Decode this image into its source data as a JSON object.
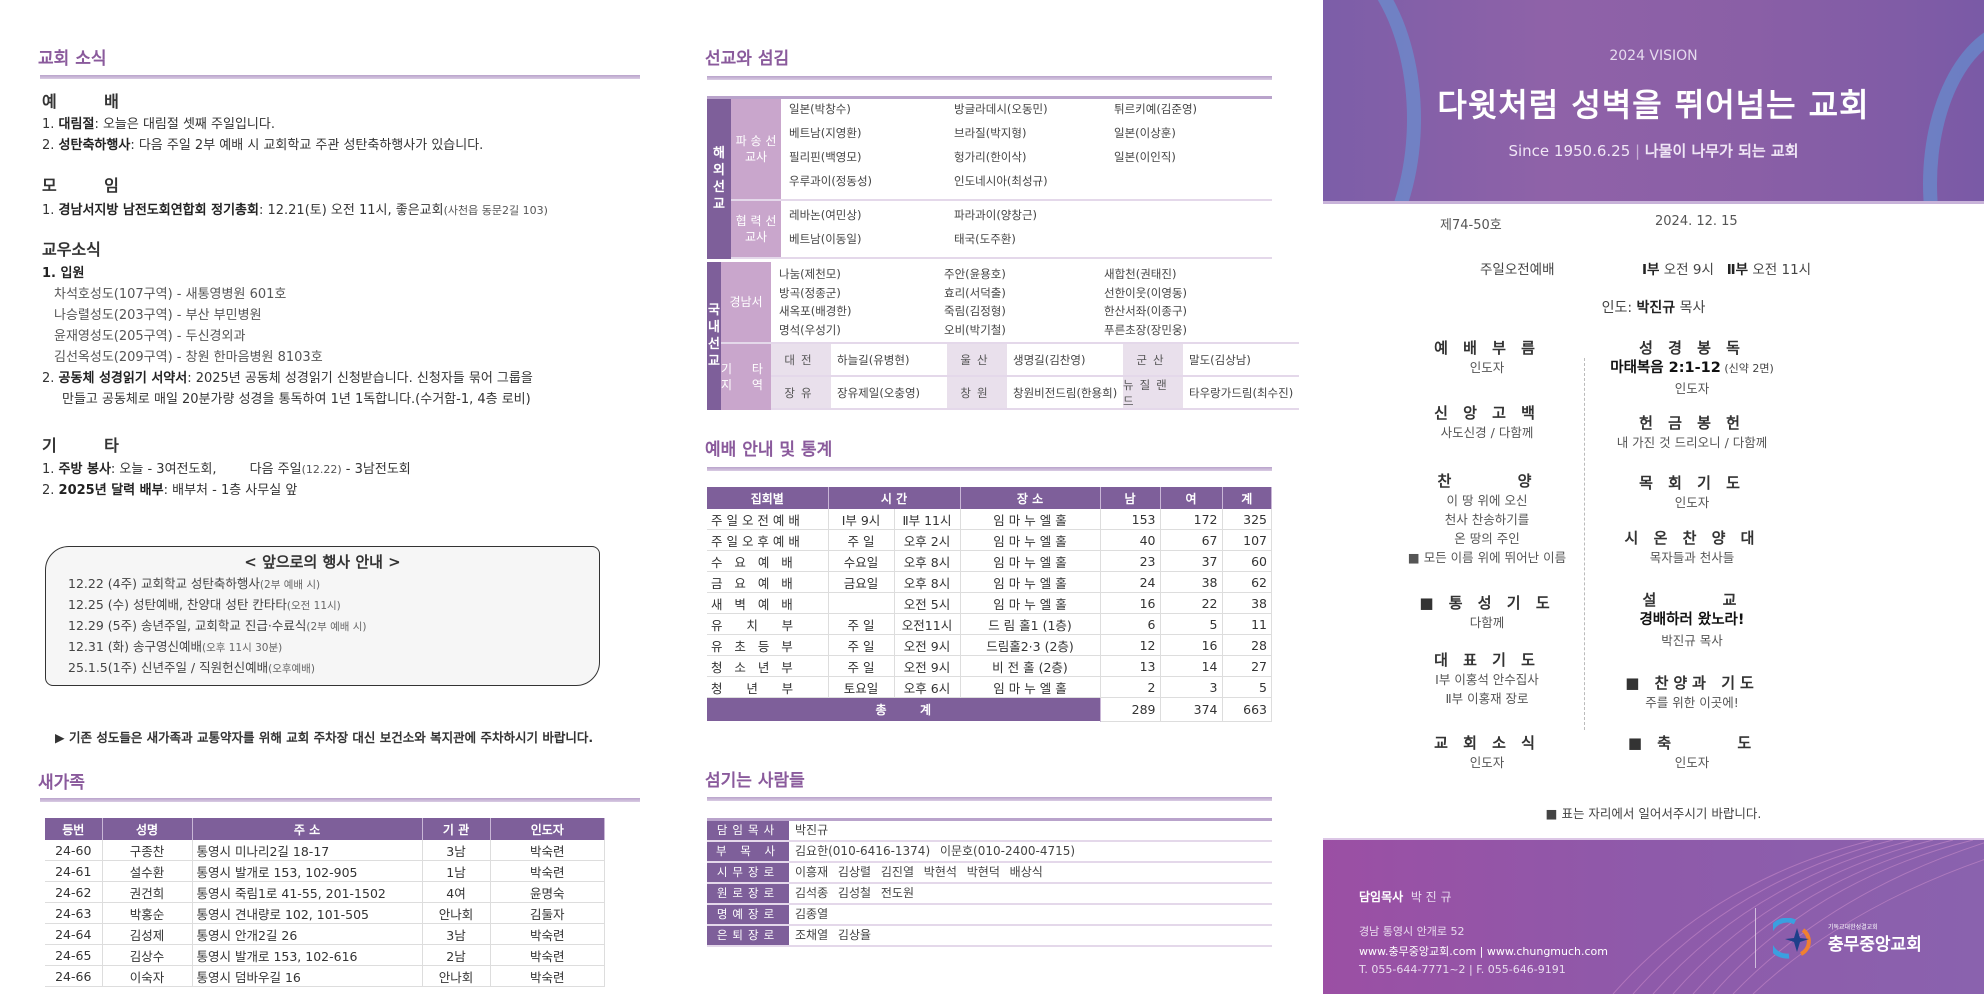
{
  "left": {
    "news_title": "교회 소식",
    "worship": {
      "heading": "예      배",
      "items": [
        {
          "num": "1.",
          "label": "대림절",
          "text": ": 오늘은 대림절 셋째 주일입니다."
        },
        {
          "num": "2.",
          "label": "성탄축하행사",
          "text": ": 다음 주일 2부 예배 시 교회학교 주관 성탄축하행사가 있습니다."
        }
      ]
    },
    "meeting": {
      "heading": "모      임",
      "items": [
        {
          "num": "1.",
          "label": "경남서지방 남전도회연합회 정기총회",
          "text": ": 12.21(토) 오전 11시, 좋은교회",
          "note": "(사천읍 동문2길 103)"
        }
      ]
    },
    "members": {
      "heading": "교우소식",
      "hospital_label": "1. 입원",
      "hospital": [
        "차석호성도(107구역) - 새통영병원 601호",
        "나승렬성도(203구역) - 부산 부민병원",
        "윤재영성도(205구역) - 두신경외과",
        "김선옥성도(209구역) - 창원 한마음병원 8103호"
      ],
      "bible": {
        "num": "2.",
        "label": "공동체 성경읽기 서약서",
        "text": ": 2025년 공동체 성경읽기 신청받습니다. 신청자들 묶어 그룹을",
        "text2": "만들고 공동체로 매일 20분가량 성경을 통독하여 1년 1독합니다.(수거함-1, 4층 로비)"
      }
    },
    "etc": {
      "heading": "기      타",
      "items": [
        {
          "num": "1.",
          "label": "주방 봉사",
          "text": ": 오늘 - 3여전도회,        다음 주일",
          "note": "(12.22)",
          "text2": " - 3남전도회"
        },
        {
          "num": "2.",
          "label": "2025년 달력 배부",
          "text": ": 배부처 - 1층 사무실 앞"
        }
      ]
    },
    "events": {
      "title": "< 앞으로의 행사 안내 >",
      "items": [
        {
          "text": "12.22 (4주) 교회학교 성탄축하행사",
          "note": "(2부 예배 시)"
        },
        {
          "text": "12.25 (수) 성탄예배, 찬양대 성탄 칸타타",
          "note": "(오전 11시)"
        },
        {
          "text": "12.29 (5주) 송년주일, 교회학교 진급·수료식",
          "note": "(2부 예배 시)"
        },
        {
          "text": "12.31 (화) 송구영신예배",
          "note": "(오후 11시 30분)"
        },
        {
          "text": "25.1.5(1주) 신년주일 / 직원헌신예배",
          "note": "(오후예배)"
        }
      ]
    },
    "parking_note": "▶ 기존 성도들은 새가족과 교통약자를 위해 교회 주차장 대신 보건소와 복지관에 주차하시기 바랍니다.",
    "newfamily_title": "새가족",
    "newfamily": {
      "headers": [
        "등번",
        "성명",
        "주 소",
        "기 관",
        "인도자"
      ],
      "rows": [
        [
          "24-60",
          "구종찬",
          "통영시 미나리2길 18-17",
          "3남",
          "박숙련"
        ],
        [
          "24-61",
          "설수환",
          "통영시 발개로 153, 102-905",
          "1남",
          "박숙련"
        ],
        [
          "24-62",
          "권건희",
          "통영시 죽림1로 41-55, 201-1502",
          "4여",
          "윤명숙"
        ],
        [
          "24-63",
          "박홍순",
          "통영시 견내량로 102, 101-505",
          "안나회",
          "김둘자"
        ],
        [
          "24-64",
          "김성제",
          "통영시 안개2길 26",
          "3남",
          "박숙련"
        ],
        [
          "24-65",
          "김상수",
          "통영시 발개로 153, 102-616",
          "2남",
          "박숙련"
        ],
        [
          "24-66",
          "이숙자",
          "통영시 덤바우길 16",
          "안나회",
          "박숙련"
        ]
      ]
    }
  },
  "middle": {
    "mission_title": "선교와 섬김",
    "overseas_label": "해외선교",
    "sent_label": "파 송 선교사",
    "sent": [
      "일본(박창수)",
      "방글라데시(오동민)",
      "튀르키예(김준영)",
      "베트남(지영환)",
      "브라질(박지형)",
      "일본(이상훈)",
      "필리핀(백영모)",
      "헝가리(한이삭)",
      "일본(이인직)",
      "우루과이(정동성)",
      "인도네시아(최성규)",
      ""
    ],
    "partner_label": "협 력 선교사",
    "partner": [
      "레바논(여민상)",
      "파라과이(양창근)",
      "",
      "베트남(이동일)",
      "태국(도주환)",
      ""
    ],
    "domestic_label": "국내선교",
    "gyeongnam_label": "경남서",
    "gyeongnam": [
      "나눔(제천모)",
      "주안(윤용호)",
      "새합천(권태진)",
      "방곡(정종군)",
      "효리(서덕출)",
      "선한이웃(이영동)",
      "새옥포(배경한)",
      "죽림(김정형)",
      "한산서좌(이종구)",
      "명석(우성기)",
      "오비(박기철)",
      "푸른초장(장민웅)"
    ],
    "other_label": "기 타 지 역",
    "other": [
      [
        {
          "region": "대전",
          "church": "하늘길(유병현)"
        },
        {
          "region": "울산",
          "church": "생명길(김찬영)"
        },
        {
          "region": "군산",
          "church": "말도(김상남)"
        }
      ],
      [
        {
          "region": "장유",
          "church": "장유제일(오충영)"
        },
        {
          "region": "창원",
          "church": "창원비전드림(한용희)"
        },
        {
          "region": "뉴질랜드",
          "church": "타우랑가드림(최수진)"
        }
      ]
    ],
    "stats_title": "예배 안내 및 통계",
    "stats": {
      "headers": [
        "집회별",
        "시 간",
        "장 소",
        "남",
        "여",
        "계"
      ],
      "rows": [
        [
          "주 일 오 전 예 배",
          "Ⅰ부 9시",
          "Ⅱ부 11시",
          "임 마 누 엘 홀",
          "153",
          "172",
          "325"
        ],
        [
          "주 일 오 후 예 배",
          "주  일",
          "오후 2시",
          "임 마 누 엘 홀",
          "40",
          "67",
          "107"
        ],
        [
          "수   요   예   배",
          "수요일",
          "오후 8시",
          "임 마 누 엘 홀",
          "23",
          "37",
          "60"
        ],
        [
          "금   요   예   배",
          "금요일",
          "오후 8시",
          "임 마 누 엘 홀",
          "24",
          "38",
          "62"
        ],
        [
          "새   벽   예   배",
          "",
          "오전 5시",
          "임 마 누 엘 홀",
          "16",
          "22",
          "38"
        ],
        [
          "유      치      부",
          "주  일",
          "오전11시",
          "드 림 홀1 (1층)",
          "6",
          "5",
          "11"
        ],
        [
          "유   초   등   부",
          "주  일",
          "오전 9시",
          "드림홀2·3 (2층)",
          "12",
          "16",
          "28"
        ],
        [
          "청   소   년   부",
          "주  일",
          "오전 9시",
          "비  전  홀 (2층)",
          "13",
          "14",
          "27"
        ],
        [
          "청      년      부",
          "토요일",
          "오후 6시",
          "임 마 누 엘 홀",
          "2",
          "3",
          "5"
        ]
      ],
      "total_label": "총        계",
      "total": [
        "289",
        "374",
        "663"
      ]
    },
    "servers_title": "섬기는 사람들",
    "servers": [
      {
        "role": "담임목사",
        "names": "박진규"
      },
      {
        "role": "부 목 사",
        "names": "김요한(010-6416-1374)  이문호(010-2400-4715)"
      },
      {
        "role": "시무장로",
        "names": "이흥재 김상렬 김진열 박현석 박현덕 배상식"
      },
      {
        "role": "원로장로",
        "names": "김석종 김성철 전도원"
      },
      {
        "role": "명예장로",
        "names": "김종열"
      },
      {
        "role": "은퇴장로",
        "names": "조채열 김상율"
      }
    ]
  },
  "right": {
    "banner": {
      "vision": "2024 VISION",
      "slogan": "다윗처럼 성벽을 뛰어넘는 교회",
      "since": "Since 1950.6.25",
      "motto": "나물이 나무가 되는 교회"
    },
    "issue": "제74-50호",
    "date": "2024. 12. 15",
    "service_name": "주일오전예배",
    "service_time1_label": "Ⅰ부",
    "service_time1": " 오전 9시",
    "service_time2_label": "Ⅱ부",
    "service_time2": " 오전 11시",
    "leader_prefix": "인도: ",
    "leader_name": "박진규",
    "leader_suffix": " 목사",
    "order_left": [
      {
        "title": "예 배 부 름",
        "lines": [
          "인도자"
        ]
      },
      {
        "title": "신 앙 고 백",
        "lines": [
          "사도신경 / 다함께"
        ]
      },
      {
        "title": "찬      양",
        "lines": [
          "이 땅 위에 오신",
          "천사 찬송하기를",
          "온 땅의 주인",
          "■  모든 이름 위에 뛰어난 이름"
        ]
      },
      {
        "title": "■ 통 성 기 도",
        "lines": [
          "다함께"
        ]
      },
      {
        "title": "대 표 기 도",
        "lines": [
          "Ⅰ부 이홍석 안수집사",
          "Ⅱ부 이홍재 장로"
        ]
      },
      {
        "title": "교 회 소 식",
        "lines": [
          "인도자"
        ]
      }
    ],
    "order_right": [
      {
        "title": "성 경 봉 독",
        "bold": "마태복음 2:1-12",
        "note": " (신약 2면)",
        "lines": [
          "인도자"
        ]
      },
      {
        "title": "헌 금 봉 헌",
        "lines": [
          "내 가진 것 드리오니 / 다함께"
        ]
      },
      {
        "title": "목 회 기 도",
        "lines": [
          "인도자"
        ]
      },
      {
        "title": "시 온 찬 양 대",
        "lines": [
          "목자들과 천사들"
        ]
      },
      {
        "title": "설      교",
        "bold": "경배하러 왔노라!",
        "lines": [
          "박진규 목사"
        ]
      },
      {
        "title": "■ 찬양과 기도",
        "lines": [
          "주를 위한 이곳에!"
        ]
      },
      {
        "title": "■ 축      도",
        "lines": [
          "인도자"
        ]
      }
    ],
    "stand_note": "■ 표는 자리에서 일어서주시기 바랍니다.",
    "footer": {
      "pastor_label": "담임목사",
      "pastor": "박 진 규",
      "address": "경남 통영시 안개로 52",
      "web": "www.충무중앙교회.com | www.chungmuch.com",
      "phone": "T. 055-644-7771~2 | F. 055-646-9191",
      "logo_small": "기독교대한성결교회",
      "logo_name": "충무중앙교회"
    }
  },
  "colors": {
    "accent": "#7e5f9a",
    "accent_light": "#c9a6cc",
    "heading": "#8a5a9c"
  }
}
